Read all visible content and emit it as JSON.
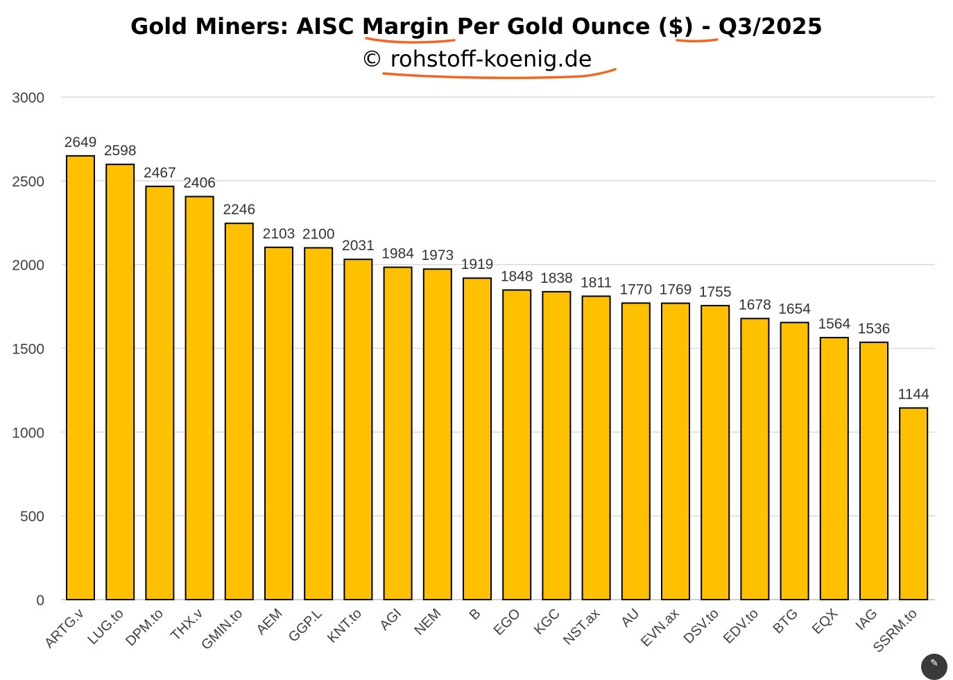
{
  "chart_data": {
    "type": "bar",
    "title": "Gold Miners: AISC Margin Per Gold Ounce ($) - Q3/2025",
    "subtitle": "© rohstoff-koenig.de",
    "xlabel": "",
    "ylabel": "",
    "ylim": [
      0,
      3000
    ],
    "yticks": [
      "0",
      "500",
      "1000",
      "1500",
      "2000",
      "2500",
      "3000"
    ],
    "ytick_values": [
      0,
      500,
      1000,
      1500,
      2000,
      2500,
      3000
    ],
    "categories": [
      "ARTG.v",
      "LUG.to",
      "DPM.to",
      "THX.v",
      "GMIN.to",
      "AEM",
      "GGP.L",
      "KNT.to",
      "AGI",
      "NEM",
      "B",
      "EGO",
      "KGC",
      "NST.ax",
      "AU",
      "EVN.ax",
      "DSV.to",
      "EDV.to",
      "BTG",
      "EQX",
      "IAG",
      "SSRM.to"
    ],
    "values": [
      2649,
      2598,
      2467,
      2406,
      2246,
      2103,
      2100,
      2031,
      1984,
      1973,
      1919,
      1848,
      1838,
      1811,
      1770,
      1769,
      1755,
      1678,
      1654,
      1564,
      1536,
      1144
    ],
    "bar_color": "#ffc000",
    "bar_edge_color": "#000000",
    "annotation_color": "#f26522",
    "grid": true,
    "legend": "none"
  },
  "ui": {
    "corner_icon": "image-edit-icon"
  }
}
